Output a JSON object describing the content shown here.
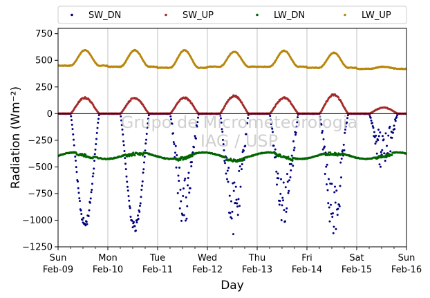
{
  "chart_data": {
    "type": "scatter",
    "xlabel": "Day",
    "ylabel": "Radiation (Wm⁻²)",
    "ylim": [
      -1250,
      800
    ],
    "xlim": [
      "2025-02-09",
      "2025-02-16"
    ],
    "yticks": [
      800,
      750,
      500,
      250,
      0,
      -250,
      -500,
      -750,
      -1000,
      -1250
    ],
    "ytick_labels": [
      "750",
      "500",
      "250",
      "0",
      "−250",
      "−500",
      "−750",
      "−1000",
      "−1250"
    ],
    "ytick_values": [
      750,
      500,
      250,
      0,
      -250,
      -500,
      -750,
      -1000,
      -1250
    ],
    "xtick_labels": [
      {
        "day": "Sun",
        "date": "Feb-09"
      },
      {
        "day": "Mon",
        "date": "Feb-10"
      },
      {
        "day": "Tue",
        "date": "Feb-11"
      },
      {
        "day": "Wed",
        "date": "Feb-12"
      },
      {
        "day": "Thu",
        "date": "Feb-13"
      },
      {
        "day": "Fri",
        "date": "Feb-14"
      },
      {
        "day": "Sat",
        "date": "Feb-15"
      },
      {
        "day": "Sun",
        "date": "Feb-16"
      }
    ],
    "grid": "vertical",
    "reference_line": 0,
    "legend_position": "top",
    "watermark": [
      "Grupo de Micrometeorologia",
      "IAG / USP"
    ],
    "series": [
      {
        "name": "SW_DN",
        "color": "#00007f",
        "daily_peak": [
          -1080,
          -1110,
          -1090,
          -1170,
          -1060,
          -1210,
          -560
        ],
        "noon_offset": 0.58
      },
      {
        "name": "SW_UP",
        "color": "#a52a2a",
        "daily_peak": [
          155,
          155,
          155,
          175,
          155,
          185,
          60
        ],
        "noon_offset": 0.58
      },
      {
        "name": "LW_DN",
        "color": "#006400",
        "base": -395,
        "amplitude": 30
      },
      {
        "name": "LW_UP",
        "color": "#b8860b",
        "daily_base": [
          450,
          440,
          430,
          440,
          440,
          430,
          420
        ],
        "daily_peak": [
          595,
          595,
          595,
          580,
          590,
          570,
          440
        ],
        "noon_offset": 0.58
      }
    ]
  }
}
